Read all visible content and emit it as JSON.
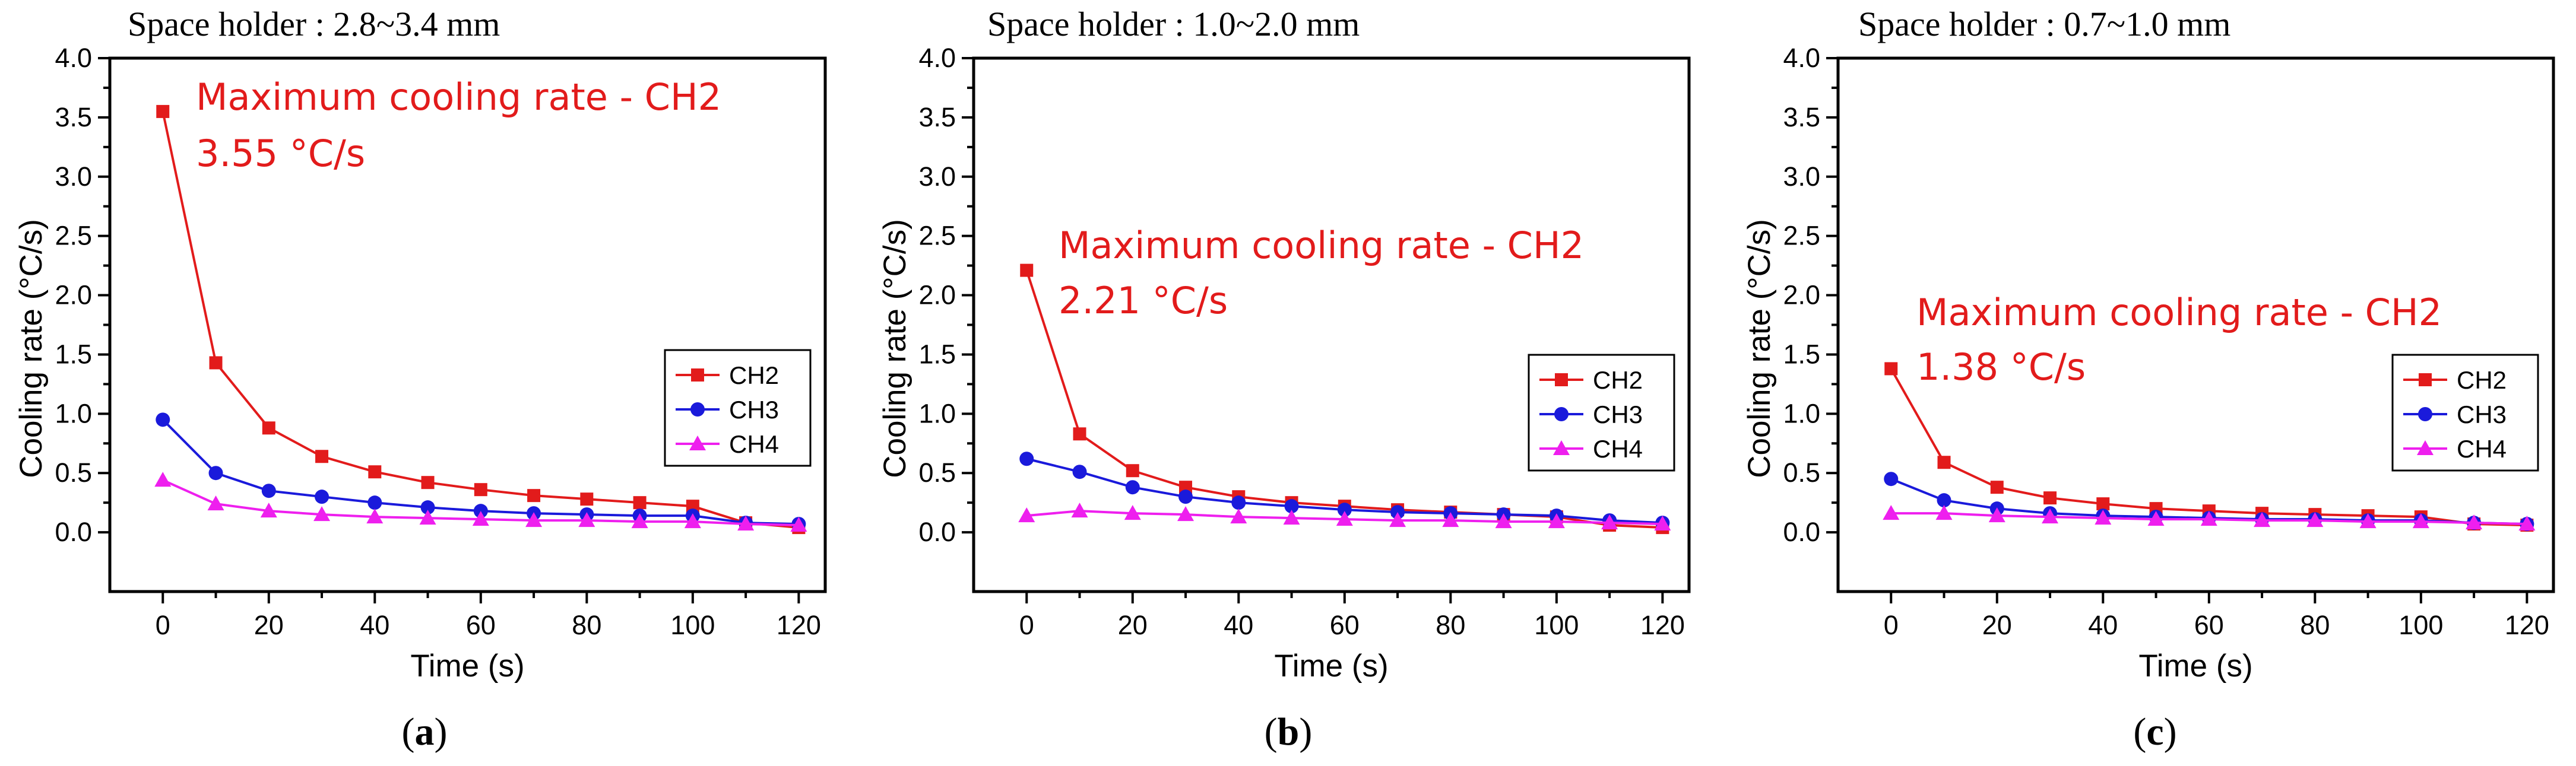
{
  "figure": {
    "colors": {
      "CH2": "#e21b1b",
      "CH3": "#1a1adb",
      "CH4": "#ee1fee"
    }
  },
  "chart_data": [
    {
      "type": "line",
      "title": "Space holder : 2.8~3.4 mm",
      "panel_label": "a",
      "xlabel": "Time (s)",
      "ylabel": "Cooling rate (°C/s)",
      "xlim": [
        -10,
        125
      ],
      "ylim": [
        -0.5,
        4.0
      ],
      "xticks": [
        0,
        20,
        40,
        60,
        80,
        100,
        120
      ],
      "yticks": [
        0.0,
        0.5,
        1.0,
        1.5,
        2.0,
        2.5,
        3.0,
        3.5,
        4.0
      ],
      "x": [
        0,
        10,
        20,
        30,
        40,
        50,
        60,
        70,
        80,
        90,
        100,
        110,
        120
      ],
      "series": [
        {
          "name": "CH2",
          "marker": "square",
          "values": [
            3.55,
            1.43,
            0.88,
            0.64,
            0.51,
            0.42,
            0.36,
            0.31,
            0.28,
            0.25,
            0.22,
            0.08,
            0.04
          ]
        },
        {
          "name": "CH3",
          "marker": "circle",
          "values": [
            0.95,
            0.5,
            0.35,
            0.3,
            0.25,
            0.21,
            0.18,
            0.16,
            0.15,
            0.14,
            0.14,
            0.08,
            0.07
          ]
        },
        {
          "name": "CH4",
          "marker": "triangle",
          "values": [
            0.44,
            0.24,
            0.18,
            0.15,
            0.13,
            0.12,
            0.11,
            0.1,
            0.1,
            0.09,
            0.09,
            0.07,
            0.06
          ]
        }
      ],
      "annotation": {
        "line1": "Maximum cooling rate - CH2",
        "line2": "3.55 °C/s",
        "anchor_x": 0,
        "anchor_y": 3.55
      },
      "legend": {
        "entries": [
          "CH2",
          "CH3",
          "CH4"
        ],
        "placement": "right"
      }
    },
    {
      "type": "line",
      "title": "Space holder : 1.0~2.0 mm",
      "panel_label": "b",
      "xlabel": "Time (s)",
      "ylabel": "Cooling rate (°C/s)",
      "xlim": [
        -10,
        125
      ],
      "ylim": [
        -0.5,
        4.0
      ],
      "xticks": [
        0,
        20,
        40,
        60,
        80,
        100,
        120
      ],
      "yticks": [
        0.0,
        0.5,
        1.0,
        1.5,
        2.0,
        2.5,
        3.0,
        3.5,
        4.0
      ],
      "x": [
        0,
        10,
        20,
        30,
        40,
        50,
        60,
        70,
        80,
        90,
        100,
        110,
        120
      ],
      "series": [
        {
          "name": "CH2",
          "marker": "square",
          "values": [
            2.21,
            0.83,
            0.52,
            0.38,
            0.3,
            0.25,
            0.22,
            0.19,
            0.17,
            0.15,
            0.13,
            0.06,
            0.04
          ]
        },
        {
          "name": "CH3",
          "marker": "circle",
          "values": [
            0.62,
            0.51,
            0.38,
            0.3,
            0.25,
            0.22,
            0.19,
            0.17,
            0.16,
            0.15,
            0.14,
            0.1,
            0.08
          ]
        },
        {
          "name": "CH4",
          "marker": "triangle",
          "values": [
            0.14,
            0.18,
            0.16,
            0.15,
            0.13,
            0.12,
            0.11,
            0.1,
            0.1,
            0.09,
            0.09,
            0.08,
            0.07
          ]
        }
      ],
      "annotation": {
        "line1": "Maximum cooling rate - CH2",
        "line2": "2.21 °C/s",
        "anchor_x": 0,
        "anchor_y": 2.21
      },
      "legend": {
        "entries": [
          "CH2",
          "CH3",
          "CH4"
        ],
        "placement": "right"
      }
    },
    {
      "type": "line",
      "title": "Space holder : 0.7~1.0 mm",
      "panel_label": "c",
      "xlabel": "Time (s)",
      "ylabel": "Cooling rate (°C/s)",
      "xlim": [
        -10,
        125
      ],
      "ylim": [
        -0.5,
        4.0
      ],
      "xticks": [
        0,
        20,
        40,
        60,
        80,
        100,
        120
      ],
      "yticks": [
        0.0,
        0.5,
        1.0,
        1.5,
        2.0,
        2.5,
        3.0,
        3.5,
        4.0
      ],
      "x": [
        0,
        10,
        20,
        30,
        40,
        50,
        60,
        70,
        80,
        90,
        100,
        110,
        120
      ],
      "series": [
        {
          "name": "CH2",
          "marker": "square",
          "values": [
            1.38,
            0.59,
            0.38,
            0.29,
            0.24,
            0.2,
            0.18,
            0.16,
            0.15,
            0.14,
            0.13,
            0.07,
            0.06
          ]
        },
        {
          "name": "CH3",
          "marker": "circle",
          "values": [
            0.45,
            0.27,
            0.2,
            0.16,
            0.14,
            0.13,
            0.12,
            0.11,
            0.11,
            0.1,
            0.1,
            0.08,
            0.07
          ]
        },
        {
          "name": "CH4",
          "marker": "triangle",
          "values": [
            0.16,
            0.16,
            0.14,
            0.13,
            0.12,
            0.11,
            0.11,
            0.1,
            0.1,
            0.09,
            0.09,
            0.08,
            0.07
          ]
        }
      ],
      "annotation": {
        "line1": "Maximum cooling rate - CH2",
        "line2": "1.38 °C/s",
        "anchor_x": 0,
        "anchor_y": 1.38
      },
      "legend": {
        "entries": [
          "CH2",
          "CH3",
          "CH4"
        ],
        "placement": "right"
      }
    }
  ]
}
